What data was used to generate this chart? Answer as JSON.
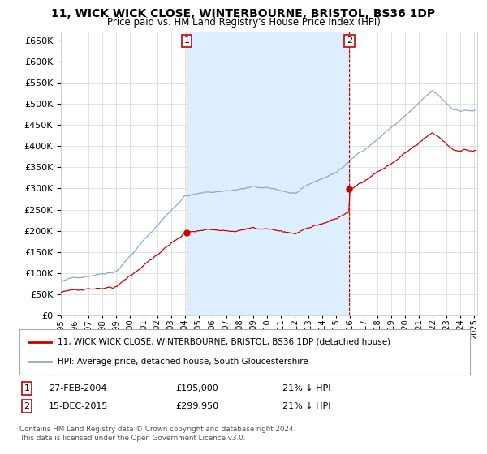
{
  "title": "11, WICK WICK CLOSE, WINTERBOURNE, BRISTOL, BS36 1DP",
  "subtitle": "Price paid vs. HM Land Registry's House Price Index (HPI)",
  "ylim": [
    0,
    670000
  ],
  "yticks": [
    0,
    50000,
    100000,
    150000,
    200000,
    250000,
    300000,
    350000,
    400000,
    450000,
    500000,
    550000,
    600000,
    650000
  ],
  "legend_line1": "11, WICK WICK CLOSE, WINTERBOURNE, BRISTOL, BS36 1DP (detached house)",
  "legend_line2": "HPI: Average price, detached house, South Gloucestershire",
  "sale1_date": "27-FEB-2004",
  "sale1_price": "£195,000",
  "sale1_hpi": "21% ↓ HPI",
  "sale2_date": "15-DEC-2015",
  "sale2_price": "£299,950",
  "sale2_hpi": "21% ↓ HPI",
  "footer": "Contains HM Land Registry data © Crown copyright and database right 2024.\nThis data is licensed under the Open Government Licence v3.0.",
  "hpi_color": "#88aacc",
  "price_paid_color": "#cc0000",
  "vline_color": "#cc0000",
  "fill_color": "#ddeeff",
  "grid_color": "#dddddd",
  "bg_color": "#ffffff",
  "sale1_year": 2004.15,
  "sale1_price_val": 195000,
  "sale2_year": 2015.95,
  "sale2_price_val": 299950
}
